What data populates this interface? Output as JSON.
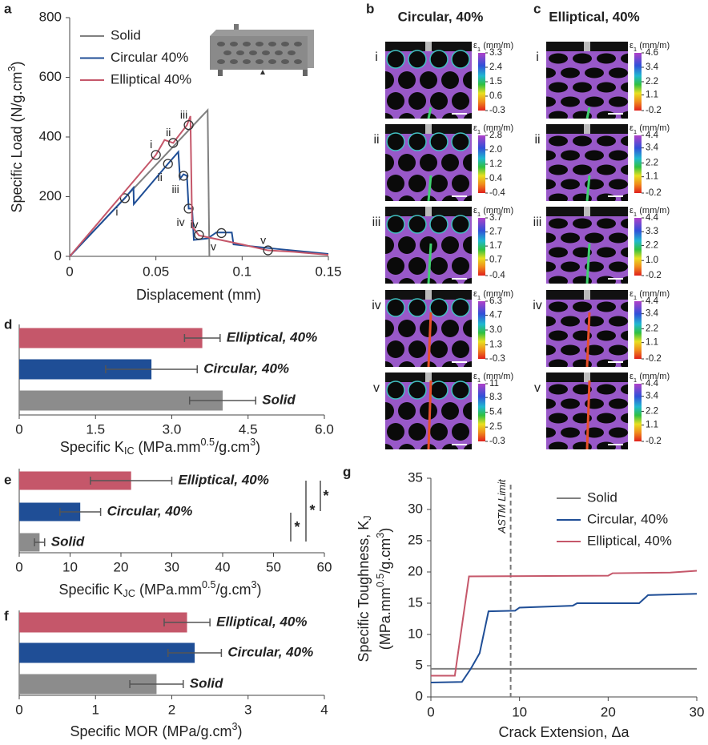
{
  "chart_data": [
    {
      "type": "line",
      "panel_label": "a",
      "xlabel": "Displacement (mm)",
      "ylabel": [
        "Specific Load (N/g.cm",
        "3",
        ")"
      ],
      "xlim": [
        0,
        0.15
      ],
      "xticks": [
        0,
        0.05,
        0.1,
        0.15
      ],
      "ylim": [
        0,
        800
      ],
      "yticks": [
        0,
        200,
        400,
        600,
        800
      ],
      "legend": "upper left",
      "series": [
        {
          "name": "Solid",
          "color": "#808080",
          "x": [
            0,
            0.08,
            0.081
          ],
          "values": [
            0,
            490,
            0
          ]
        },
        {
          "name": "Circular 40%",
          "color": "#1f4e96",
          "x": [
            0,
            0.032,
            0.037,
            0.0372,
            0.057,
            0.063,
            0.064,
            0.066,
            0.068,
            0.069,
            0.071,
            0.072,
            0.08,
            0.085,
            0.094,
            0.095,
            0.12,
            0.15
          ],
          "values": [
            0,
            195,
            230,
            175,
            310,
            350,
            260,
            275,
            270,
            160,
            160,
            55,
            60,
            80,
            80,
            40,
            25,
            8
          ],
          "points": {
            "labels": [
              "i",
              "ii",
              "iii",
              "iv",
              "v"
            ],
            "x": [
              0.032,
              0.057,
              0.066,
              0.069,
              0.088
            ],
            "values": [
              195,
              310,
              270,
              160,
              78
            ]
          }
        },
        {
          "name": "Elliptical 40%",
          "color": "#c5576a",
          "x": [
            0,
            0.05,
            0.055,
            0.06,
            0.068,
            0.07,
            0.071,
            0.075,
            0.1,
            0.115,
            0.13,
            0.15
          ],
          "values": [
            0,
            340,
            390,
            380,
            440,
            470,
            100,
            70,
            40,
            20,
            15,
            5
          ],
          "points": {
            "labels": [
              "i",
              "ii",
              "iii",
              "iv",
              "v"
            ],
            "x": [
              0.05,
              0.06,
              0.069,
              0.075,
              0.115
            ],
            "values": [
              340,
              380,
              440,
              72,
              20
            ]
          }
        }
      ]
    },
    {
      "type": "hbar",
      "panel_label": "d",
      "categories": [
        "Elliptical, 40%",
        "Circular, 40%",
        "Solid"
      ],
      "values": [
        3.6,
        2.6,
        4.0
      ],
      "errors": [
        0.35,
        0.9,
        0.65
      ],
      "colors": [
        "#c5576a",
        "#1f4e96",
        "#8c8c8c"
      ],
      "xlim": [
        0,
        6
      ],
      "xticks": [
        0,
        1.5,
        {
          "value": 3,
          "label": "3.0"
        },
        4.5,
        {
          "value": 6,
          "label": "6.0"
        }
      ],
      "xlabel": [
        "Specific K",
        "IC",
        " (MPa.mm",
        "0.5",
        "/g.cm",
        "3",
        ")"
      ]
    },
    {
      "type": "hbar",
      "panel_label": "e",
      "categories": [
        "Elliptical, 40%",
        "Circular, 40%",
        "Solid"
      ],
      "values": [
        22,
        12,
        4
      ],
      "errors": [
        8,
        4,
        1
      ],
      "colors": [
        "#c5576a",
        "#1f4e96",
        "#8c8c8c"
      ],
      "xlim": [
        0,
        60
      ],
      "xticks": [
        0,
        10,
        20,
        30,
        40,
        50,
        60
      ],
      "xlabel": [
        "Specific K",
        "JC",
        " (MPa.mm",
        "0.5",
        "/g.cm",
        "3",
        ")"
      ],
      "significance": [
        "*",
        "*",
        "*"
      ]
    },
    {
      "type": "hbar",
      "panel_label": "f",
      "categories": [
        "Elliptical, 40%",
        "Circular, 40%",
        "Solid"
      ],
      "values": [
        2.2,
        2.3,
        1.8
      ],
      "errors": [
        0.3,
        0.35,
        0.35
      ],
      "colors": [
        "#c5576a",
        "#1f4e96",
        "#8c8c8c"
      ],
      "xlim": [
        0,
        4
      ],
      "xticks": [
        0,
        1,
        2,
        3,
        4
      ],
      "xlabel": [
        "Specific MOR (MPa/g.cm",
        "3",
        ")"
      ]
    },
    {
      "type": "line",
      "panel_label": "g",
      "xlabel": "Crack Extension, Δa",
      "ylabel": [
        [
          "Specific Toughness, K",
          "J"
        ],
        [
          "(MPa.mm",
          "0.5",
          "/g.cm",
          "3",
          ")"
        ]
      ],
      "xlim": [
        0,
        30
      ],
      "xticks": [
        0,
        10,
        20,
        30
      ],
      "ylim": [
        0,
        35
      ],
      "yticks": [
        0,
        5,
        10,
        15,
        20,
        25,
        30,
        35
      ],
      "legend": "upper right",
      "reference_line": {
        "x": 9,
        "label": "ASTM Limit"
      },
      "series": [
        {
          "name": "Solid",
          "color": "#808080",
          "x": [
            0,
            30
          ],
          "values": [
            4.5,
            4.5
          ]
        },
        {
          "name": "Circular, 40%",
          "color": "#1f4e96",
          "x": [
            0,
            3.5,
            4.5,
            5.5,
            6.5,
            9.5,
            10,
            16,
            16.5,
            23.5,
            24.5,
            30
          ],
          "values": [
            2.3,
            2.4,
            4.5,
            7,
            13.7,
            13.8,
            14.3,
            14.6,
            15,
            15,
            16.3,
            16.5
          ]
        },
        {
          "name": "Elliptical, 40%",
          "color": "#c5576a",
          "x": [
            0,
            2.7,
            4.3,
            20,
            20.5,
            27,
            30
          ],
          "values": [
            3.4,
            3.4,
            19.3,
            19.4,
            19.8,
            19.9,
            20.2
          ]
        }
      ]
    }
  ],
  "strain_maps": [
    {
      "panel_label": "b",
      "title": "Circular, 40%",
      "title_color": "#1f3f8c",
      "colorbar_label": [
        "ε",
        "1",
        " (mm/m)"
      ],
      "rows": [
        {
          "label": "i",
          "ticks": [
            -0.3,
            0.6,
            1.5,
            2.4,
            3.3
          ]
        },
        {
          "label": "ii",
          "ticks": [
            -0.4,
            0.4,
            1.2,
            {
              "value": 2,
              "label": "2.0"
            },
            2.8
          ]
        },
        {
          "label": "iii",
          "ticks": [
            -0.4,
            0.7,
            1.7,
            2.7,
            3.7
          ]
        },
        {
          "label": "iv",
          "ticks": [
            -0.3,
            1.3,
            {
              "value": 3,
              "label": "3.0"
            },
            4.7,
            6.3
          ]
        },
        {
          "label": "v",
          "ticks": [
            -0.3,
            2.5,
            5.4,
            8.3,
            11
          ]
        }
      ]
    },
    {
      "panel_label": "c",
      "title": "Elliptical, 40%",
      "title_color": "#c5576a",
      "colorbar_label": [
        "ε",
        "1",
        " (mm/m)"
      ],
      "rows": [
        {
          "label": "i",
          "ticks": [
            -0.2,
            1.1,
            2.2,
            3.4,
            4.6
          ]
        },
        {
          "label": "ii",
          "ticks": [
            -0.2,
            1.1,
            2.2,
            3.4,
            4.4
          ]
        },
        {
          "label": "iii",
          "ticks": [
            -0.2,
            {
              "value": 1,
              "label": "1.0"
            },
            2.2,
            3.3,
            4.4
          ]
        },
        {
          "label": "iv",
          "ticks": [
            -0.2,
            1.1,
            2.2,
            3.4,
            4.4
          ]
        },
        {
          "label": "v",
          "ticks": [
            -0.2,
            1.1,
            2.2,
            3.4,
            4.4
          ]
        }
      ]
    }
  ]
}
